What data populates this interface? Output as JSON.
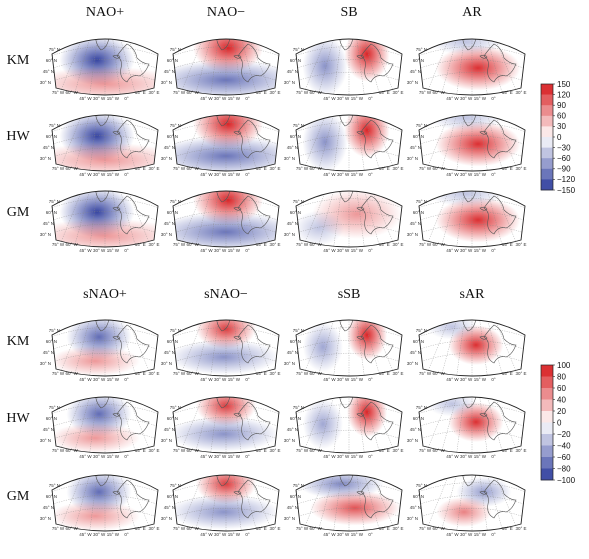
{
  "panel_a": {
    "columns": [
      "NAO+",
      "NAO−",
      "SB",
      "AR"
    ],
    "rows": [
      "KM",
      "HW",
      "GM"
    ],
    "colorbar_ticks": [
      "150",
      "120",
      "90",
      "60",
      "30",
      "0",
      "−30",
      "−60",
      "−90",
      "−120",
      "−150"
    ],
    "colorbar_values": [
      150,
      120,
      90,
      60,
      30,
      0,
      -30,
      -60,
      -90,
      -120,
      -150
    ],
    "patterns": [
      [
        "nao_pos",
        "nao_neg",
        "sb",
        "ar"
      ],
      [
        "nao_pos",
        "nao_neg",
        "sb",
        "ar"
      ],
      [
        "nao_pos",
        "nao_neg",
        "sb_gm",
        "ar"
      ]
    ]
  },
  "panel_b": {
    "columns": [
      "sNAO+",
      "sNAO−",
      "sSB",
      "sAR"
    ],
    "rows": [
      "KM",
      "HW",
      "GM"
    ],
    "colorbar_ticks": [
      "100",
      "80",
      "60",
      "40",
      "20",
      "0",
      "−20",
      "−40",
      "−60",
      "−80",
      "−100"
    ],
    "colorbar_values": [
      100,
      80,
      60,
      40,
      20,
      0,
      -20,
      -40,
      -60,
      -80,
      -100
    ],
    "patterns": [
      [
        "snao_pos",
        "snao_neg",
        "ssb",
        "sar"
      ],
      [
        "snao_pos",
        "snao_neg",
        "ssb",
        "sar"
      ],
      [
        "snao_pos",
        "snao_neg",
        "ssb_gm",
        "sar_gm"
      ]
    ]
  },
  "map_labels": {
    "lon": [
      "75° W",
      "60° W",
      "45° W",
      "30° W",
      "15° W",
      "0°",
      "15° E",
      "30° E"
    ],
    "lat": [
      "30° N",
      "45° N",
      "60° N",
      "75° N"
    ]
  },
  "colors": {
    "positive": "#d7191c",
    "negative": "#2c3b9c",
    "neutral": "#ffffff",
    "coast": "#555555"
  }
}
